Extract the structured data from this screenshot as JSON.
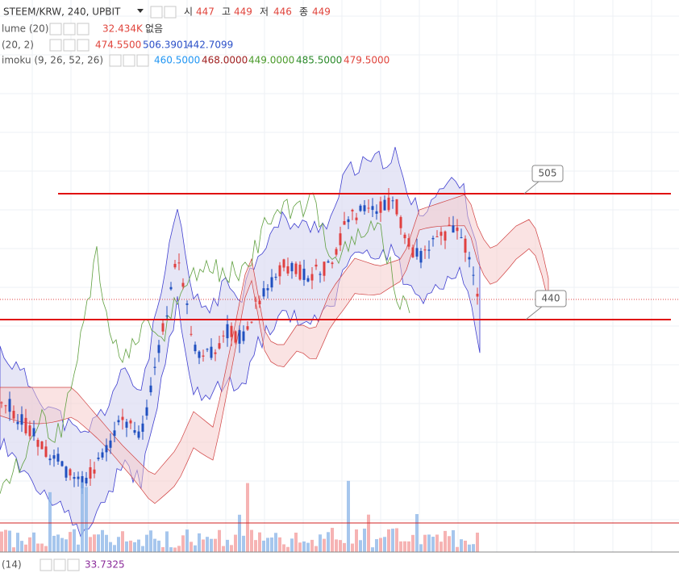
{
  "header": {
    "symbol": "STEEM/KRW, 240, UPBIT",
    "open_label": "시",
    "open": "447",
    "high_label": "고",
    "high": "449",
    "low_label": "저",
    "low": "446",
    "close_label": "종",
    "close": "449"
  },
  "indicators": [
    {
      "name": "lume (20)",
      "values": [
        "32.434K",
        "없음"
      ]
    },
    {
      "name": "(20, 2)",
      "values": [
        "474.5500",
        "506.3901",
        "442.7099"
      ]
    },
    {
      "name": "imoku (9, 26, 52, 26)",
      "values": [
        "460.5000",
        "468.0000",
        "449.0000",
        "485.5000",
        "479.5000"
      ]
    },
    {
      "name": "(14)",
      "values": [
        "33.7325"
      ]
    }
  ],
  "callouts": [
    "505",
    "440"
  ]
}
